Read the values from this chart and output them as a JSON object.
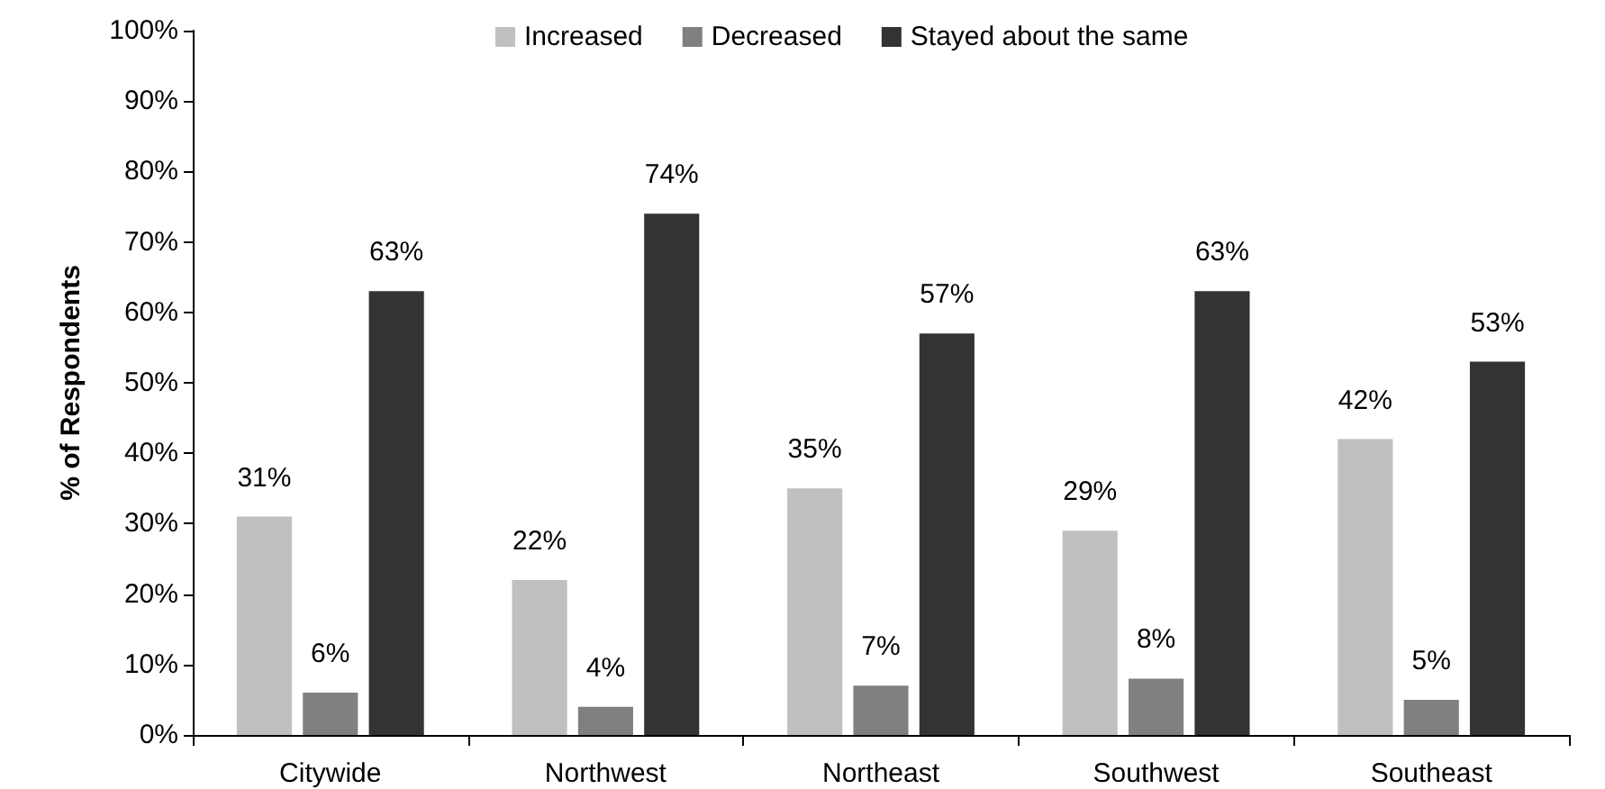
{
  "chart_data": {
    "type": "bar",
    "ylabel": "% of Respondents",
    "categories": [
      "Citywide",
      "Northwest",
      "Northeast",
      "Southwest",
      "Southeast"
    ],
    "series": [
      {
        "name": "Increased",
        "color": "#c0c0c0",
        "values": [
          31,
          22,
          35,
          29,
          42
        ],
        "value_labels": [
          "31%",
          "22%",
          "35%",
          "29%",
          "42%"
        ]
      },
      {
        "name": "Decreased",
        "color": "#808080",
        "values": [
          6,
          4,
          7,
          8,
          5
        ],
        "value_labels": [
          "6%",
          "4%",
          "7%",
          "8%",
          "5%"
        ]
      },
      {
        "name": "Stayed about the same",
        "color": "#333333",
        "values": [
          63,
          74,
          57,
          63,
          53
        ],
        "value_labels": [
          "63%",
          "74%",
          "57%",
          "63%",
          "53%"
        ]
      }
    ],
    "ylim": [
      0,
      100
    ],
    "yticks": [
      {
        "value": 0,
        "label": "0%"
      },
      {
        "value": 10,
        "label": "10%"
      },
      {
        "value": 20,
        "label": "20%"
      },
      {
        "value": 30,
        "label": "30%"
      },
      {
        "value": 40,
        "label": "40%"
      },
      {
        "value": 50,
        "label": "50%"
      },
      {
        "value": 60,
        "label": "60%"
      },
      {
        "value": 70,
        "label": "70%"
      },
      {
        "value": 80,
        "label": "80%"
      },
      {
        "value": 90,
        "label": "90%"
      },
      {
        "value": 100,
        "label": "100%"
      }
    ],
    "grid": false,
    "legend": "top"
  }
}
